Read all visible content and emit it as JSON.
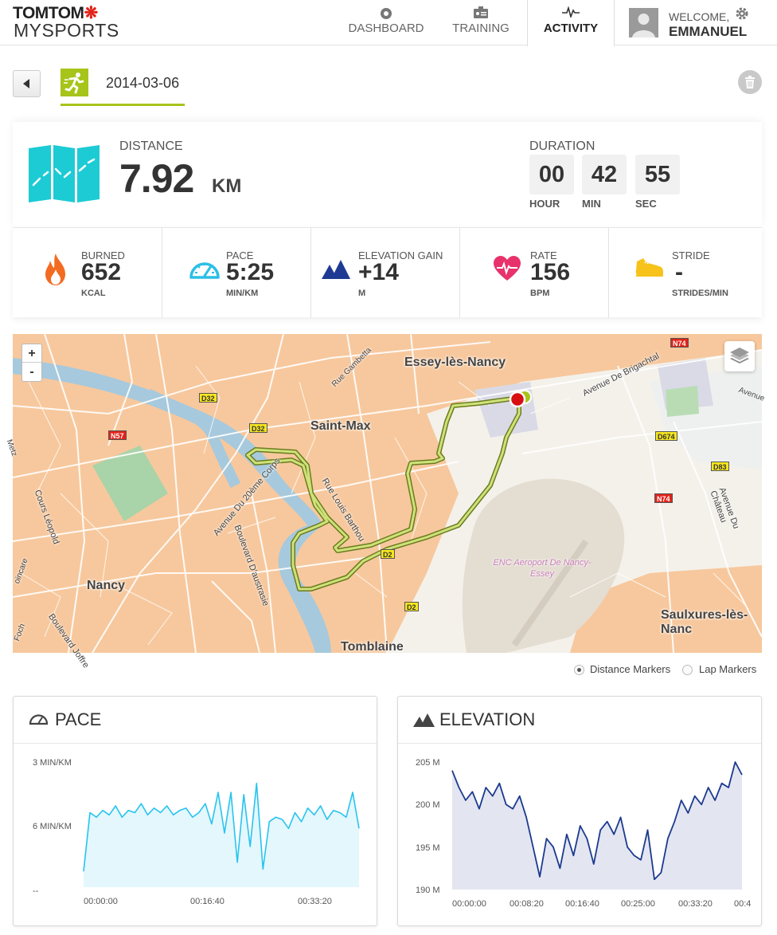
{
  "header": {
    "logo_top": "TOMTOM",
    "logo_bottom": "MYSPORTS",
    "nav": [
      {
        "label": "DASHBOARD",
        "icon": "dashboard-icon"
      },
      {
        "label": "TRAINING",
        "icon": "training-icon"
      },
      {
        "label": "ACTIVITY",
        "icon": "activity-icon",
        "active": true
      }
    ],
    "welcome": "WELCOME,",
    "username": "EMMANUEL"
  },
  "activity": {
    "date": "2014-03-06",
    "accent": "#a7c41a"
  },
  "summary": {
    "distance_label": "DISTANCE",
    "distance_value": "7.92",
    "distance_unit": "KM",
    "duration_label": "DURATION",
    "hours": "00",
    "minutes": "42",
    "seconds": "55",
    "hour_label": "HOUR",
    "min_label": "MIN",
    "sec_label": "SEC"
  },
  "stats": [
    {
      "label": "BURNED",
      "value": "652",
      "unit": "KCAL",
      "icon": "flame-icon",
      "color": "#f26b21"
    },
    {
      "label": "PACE",
      "value": "5:25",
      "unit": "MIN/KM",
      "icon": "speedometer-icon",
      "color": "#2bbfe6"
    },
    {
      "label": "ELEVATION GAIN",
      "value": "+14",
      "unit": "M",
      "icon": "mountain-icon",
      "color": "#1f3a93"
    },
    {
      "label": "RATE",
      "value": "156",
      "unit": "BPM",
      "icon": "heart-icon",
      "color": "#e8326b"
    },
    {
      "label": "STRIDE",
      "value": "-",
      "unit": "STRIDES/MIN",
      "icon": "shoe-icon",
      "color": "#f7c21a"
    }
  ],
  "map": {
    "zoom_in": "+",
    "zoom_out": "-",
    "places": [
      "Essey-lès-Nancy",
      "Saint-Max",
      "Nancy",
      "Tomblaine",
      "Saulxures-lès-Nanc"
    ],
    "streets": [
      "Rue Gambetta",
      "Avenue De Brigachtal",
      "Rue Louis Barthou",
      "Avenue Du 20ème Corps",
      "Boulevard D'austrasie",
      "Cours Léopold",
      "Avenue Du Château",
      "Boulevard Joffre",
      "ENC Aeroport De Nancy-Essey",
      "Avenue",
      "Foch",
      "oincare",
      "Metz"
    ],
    "roads": [
      "D32",
      "D32",
      "N57",
      "N74",
      "D674",
      "D83",
      "N74",
      "D2",
      "D2"
    ]
  },
  "markers": {
    "distance": "Distance Markers",
    "lap": "Lap Markers"
  },
  "pace_chart": {
    "title": "PACE",
    "chart_data": {
      "type": "area",
      "y_tick_labels": [
        "3 MIN/KM",
        "6 MIN/KM",
        "--"
      ],
      "x_tick_labels": [
        "00:00:00",
        "00:16:40",
        "00:33:20"
      ],
      "color": "#29c3ee",
      "fill": "#e3f7fd",
      "ylim": [
        3,
        9
      ],
      "y_inverted": true,
      "x_seconds": [
        0,
        60,
        120,
        180,
        240,
        300,
        360,
        420,
        480,
        540,
        600,
        660,
        720,
        780,
        840,
        900,
        960,
        1020,
        1080,
        1140,
        1200,
        1260,
        1320,
        1380,
        1440,
        1500,
        1560,
        1620,
        1680,
        1740,
        1800,
        1860,
        1920,
        1980,
        2040,
        2100,
        2160,
        2220,
        2280,
        2340,
        2400,
        2460,
        2520,
        2580
      ],
      "values": [
        8.3,
        5.7,
        5.9,
        5.6,
        5.8,
        5.4,
        5.9,
        5.6,
        5.7,
        5.3,
        5.8,
        5.5,
        5.7,
        5.4,
        5.8,
        5.6,
        5.5,
        5.9,
        5.7,
        5.3,
        6.2,
        4.8,
        6.6,
        4.8,
        7.9,
        4.9,
        7.2,
        4.4,
        8.2,
        6.1,
        5.9,
        6.0,
        6.4,
        5.7,
        6.1,
        5.5,
        5.8,
        5.4,
        6.0,
        5.6,
        5.7,
        5.9,
        4.8,
        6.4
      ]
    }
  },
  "elevation_chart": {
    "title": "ELEVATION",
    "chart_data": {
      "type": "area",
      "y_tick_labels": [
        "205 M",
        "200 M",
        "195 M",
        "190 M"
      ],
      "x_tick_labels": [
        "00:00:00",
        "00:08:20",
        "00:16:40",
        "00:25:00",
        "00:33:20",
        "00:4"
      ],
      "color": "#1c3a8e",
      "fill": "#e3e6f1",
      "ylim": [
        190,
        205
      ],
      "x_seconds": [
        0,
        60,
        120,
        180,
        240,
        300,
        360,
        420,
        480,
        540,
        600,
        660,
        720,
        780,
        840,
        900,
        960,
        1020,
        1080,
        1140,
        1200,
        1260,
        1320,
        1380,
        1440,
        1500,
        1560,
        1620,
        1680,
        1740,
        1800,
        1860,
        1920,
        1980,
        2040,
        2100,
        2160,
        2220,
        2280,
        2340,
        2400,
        2460,
        2520,
        2580
      ],
      "values": [
        204,
        202,
        200.5,
        201.5,
        199.5,
        202,
        201,
        202.5,
        200,
        199.5,
        201,
        198.5,
        195,
        191.5,
        196,
        195,
        192.5,
        196.5,
        194,
        197.5,
        196,
        193,
        197,
        198,
        196.5,
        198.5,
        195,
        194,
        193.5,
        197,
        191.2,
        192,
        196,
        198,
        200.5,
        199,
        201,
        200,
        202,
        200.5,
        202.5,
        202,
        205,
        203.5
      ]
    }
  }
}
